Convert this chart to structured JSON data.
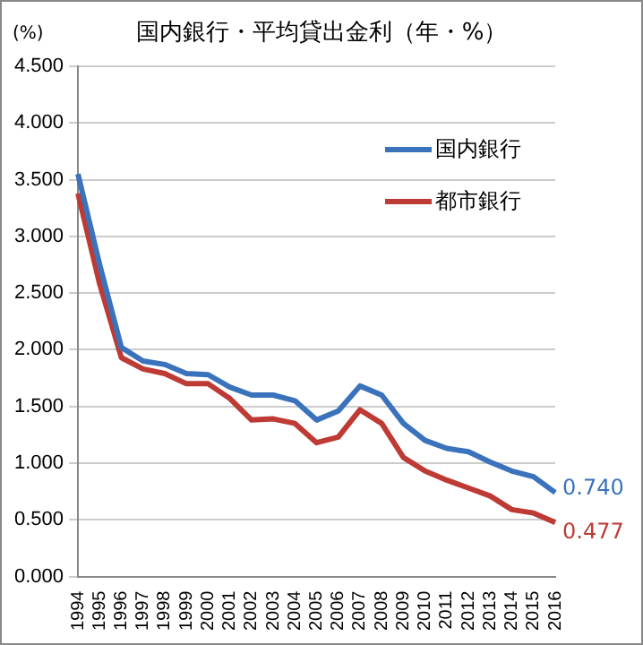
{
  "chart_data": {
    "type": "line",
    "title": "国内銀行・平均貸出金利（年・%）",
    "ylabel": "(%)",
    "categories": [
      "1994",
      "1995",
      "1996",
      "1997",
      "1998",
      "1999",
      "2000",
      "2001",
      "2002",
      "2003",
      "2004",
      "2005",
      "2006",
      "2007",
      "2008",
      "2009",
      "2010",
      "2011",
      "2012",
      "2013",
      "2014",
      "2015",
      "2016"
    ],
    "series": [
      {
        "name": "国内銀行",
        "color": "#3a73bc",
        "values": [
          3.55,
          2.75,
          2.02,
          1.9,
          1.87,
          1.79,
          1.78,
          1.67,
          1.6,
          1.6,
          1.55,
          1.38,
          1.46,
          1.68,
          1.6,
          1.35,
          1.2,
          1.13,
          1.1,
          1.01,
          0.93,
          0.88,
          0.74
        ],
        "value_labels": [
          null,
          null,
          null,
          null,
          null,
          null,
          null,
          null,
          null,
          null,
          null,
          null,
          null,
          null,
          null,
          null,
          null,
          null,
          null,
          null,
          null,
          null,
          "0.740"
        ]
      },
      {
        "name": "都市銀行",
        "color": "#be3a34",
        "values": [
          3.38,
          2.58,
          1.93,
          1.83,
          1.79,
          1.7,
          1.7,
          1.57,
          1.38,
          1.39,
          1.35,
          1.18,
          1.23,
          1.47,
          1.35,
          1.05,
          0.93,
          0.85,
          0.78,
          0.71,
          0.59,
          0.56,
          0.477
        ],
        "value_labels": [
          null,
          null,
          null,
          null,
          null,
          null,
          null,
          null,
          null,
          null,
          null,
          null,
          null,
          null,
          null,
          null,
          null,
          null,
          null,
          null,
          null,
          null,
          "0.477"
        ]
      }
    ],
    "ylim": [
      0,
      4.5
    ],
    "yticks": [
      {
        "value": 0,
        "label": "0.000"
      },
      {
        "value": 0.5,
        "label": "0.500"
      },
      {
        "value": 1,
        "label": "1.000"
      },
      {
        "value": 1.5,
        "label": "1.500"
      },
      {
        "value": 2,
        "label": "2.000"
      },
      {
        "value": 2.5,
        "label": "2.500"
      },
      {
        "value": 3,
        "label": "3.000"
      },
      {
        "value": 3.5,
        "label": "3.500"
      },
      {
        "value": 4,
        "label": "4.000"
      },
      {
        "value": 4.5,
        "label": "4.500"
      }
    ],
    "grid": "y",
    "legend": "top right",
    "marker": "none",
    "line_style": "solid"
  }
}
